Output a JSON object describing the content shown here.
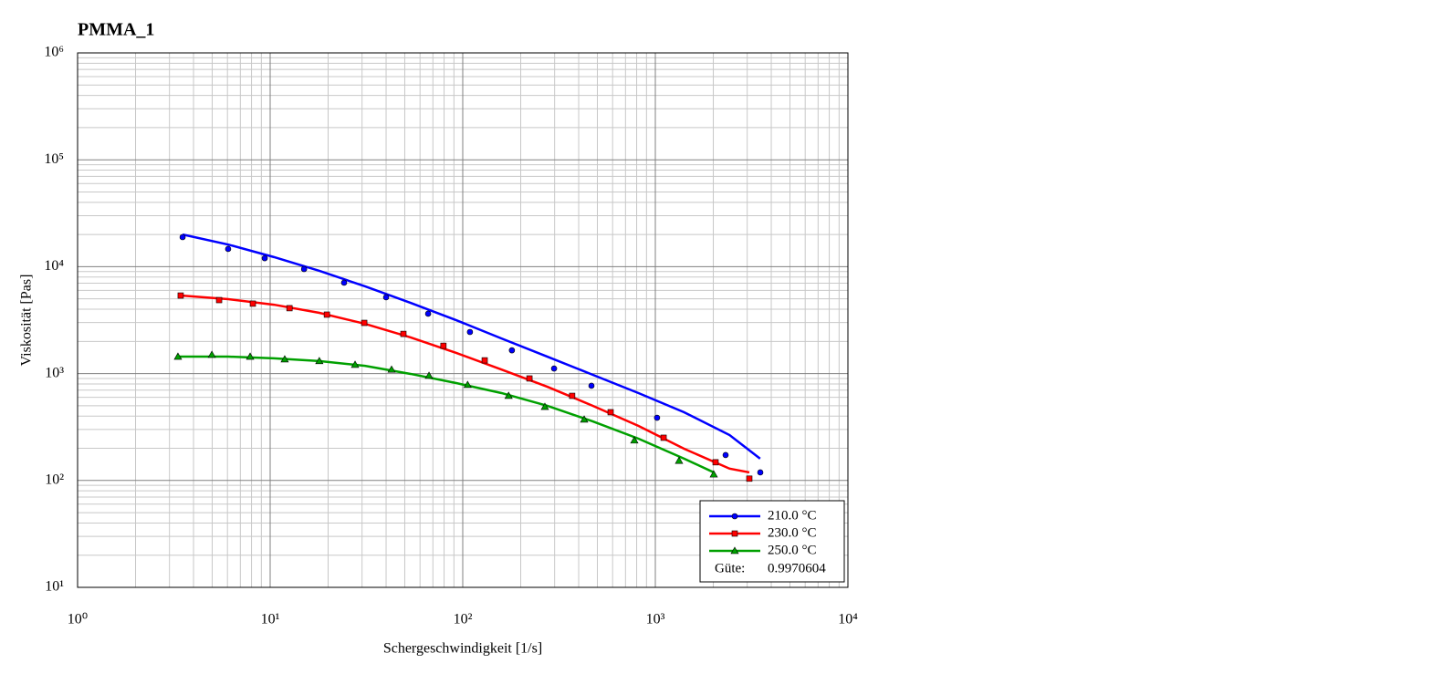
{
  "chart_data": {
    "type": "scatter",
    "title": "PMMA_1",
    "x_label": "Schergeschwindigkeit [1/s]",
    "y_label": "Viskosität [Pas]",
    "log_x": true,
    "log_y": true,
    "grid": true,
    "legend": "lower right",
    "xlim": [
      1,
      10000
    ],
    "ylim": [
      10,
      1000000
    ],
    "xticks": [
      {
        "value": 1,
        "label": "10⁰"
      },
      {
        "value": 10,
        "label": "10¹"
      },
      {
        "value": 100,
        "label": "10²"
      },
      {
        "value": 1000,
        "label": "10³"
      },
      {
        "value": 10000,
        "label": "10⁴"
      }
    ],
    "yticks": [
      {
        "value": 10,
        "label": "10¹"
      },
      {
        "value": 100,
        "label": "10²"
      },
      {
        "value": 1000,
        "label": "10³"
      },
      {
        "value": 10000,
        "label": "10⁴"
      },
      {
        "value": 100000,
        "label": "10⁵"
      },
      {
        "value": 1000000,
        "label": "10⁶"
      }
    ],
    "series": [
      {
        "name": "210.0 °C",
        "color": "#0000ff",
        "marker": "circle",
        "x": [
          3.51,
          6.05,
          9.37,
          15.0,
          24.2,
          40.0,
          66.1,
          109,
          180,
          298,
          466,
          1021,
          2317,
          3508
        ],
        "values": [
          18900,
          14650,
          12000,
          9500,
          7080,
          5170,
          3630,
          2450,
          1650,
          1115,
          769,
          386,
          173,
          119
        ],
        "fit_x": [
          3.51,
          6.06,
          10.46,
          18.0,
          31.1,
          53.6,
          92.5,
          159,
          275,
          474,
          818,
          1410,
          2430,
          3500
        ],
        "fit_values": [
          20000,
          16100,
          12300,
          9140,
          6550,
          4590,
          3160,
          2130,
          1440,
          973,
          657,
          435,
          266,
          160
        ]
      },
      {
        "name": "230.0 °C",
        "color": "#ff0000",
        "marker": "square",
        "x": [
          3.43,
          5.43,
          8.13,
          12.6,
          19.7,
          30.8,
          49.2,
          79.4,
          130,
          222,
          370,
          586,
          1104,
          2055,
          3077
        ],
        "values": [
          5370,
          4870,
          4510,
          4090,
          3560,
          2980,
          2350,
          1820,
          1330,
          900,
          619,
          435,
          251,
          148,
          104
        ],
        "fit_x": [
          3.43,
          6.06,
          10.46,
          18.0,
          31.1,
          53.6,
          92.5,
          159,
          275,
          474,
          818,
          1410,
          2430,
          3077
        ],
        "fit_values": [
          5370,
          4970,
          4410,
          3700,
          2920,
          2180,
          1560,
          1090,
          753,
          499,
          324,
          198,
          129,
          119
        ]
      },
      {
        "name": "250.0 °C",
        "color": "#00a000",
        "marker": "triangle",
        "x": [
          3.32,
          4.98,
          7.87,
          11.9,
          18.0,
          27.6,
          42.7,
          66.8,
          106,
          173,
          267,
          427,
          778,
          1328,
          2011
        ],
        "values": [
          1440,
          1500,
          1440,
          1360,
          1310,
          1210,
          1090,
          955,
          784,
          620,
          489,
          372,
          237,
          153,
          114
        ],
        "fit_x": [
          3.32,
          6.06,
          10.46,
          18.0,
          31.1,
          53.6,
          92.5,
          159,
          275,
          474,
          818,
          1410,
          2011
        ],
        "fit_values": [
          1440,
          1440,
          1390,
          1310,
          1180,
          993,
          815,
          657,
          499,
          357,
          246,
          160,
          119
        ]
      }
    ],
    "annotation": {
      "label": "Güte:",
      "value": 0.9970604
    }
  }
}
